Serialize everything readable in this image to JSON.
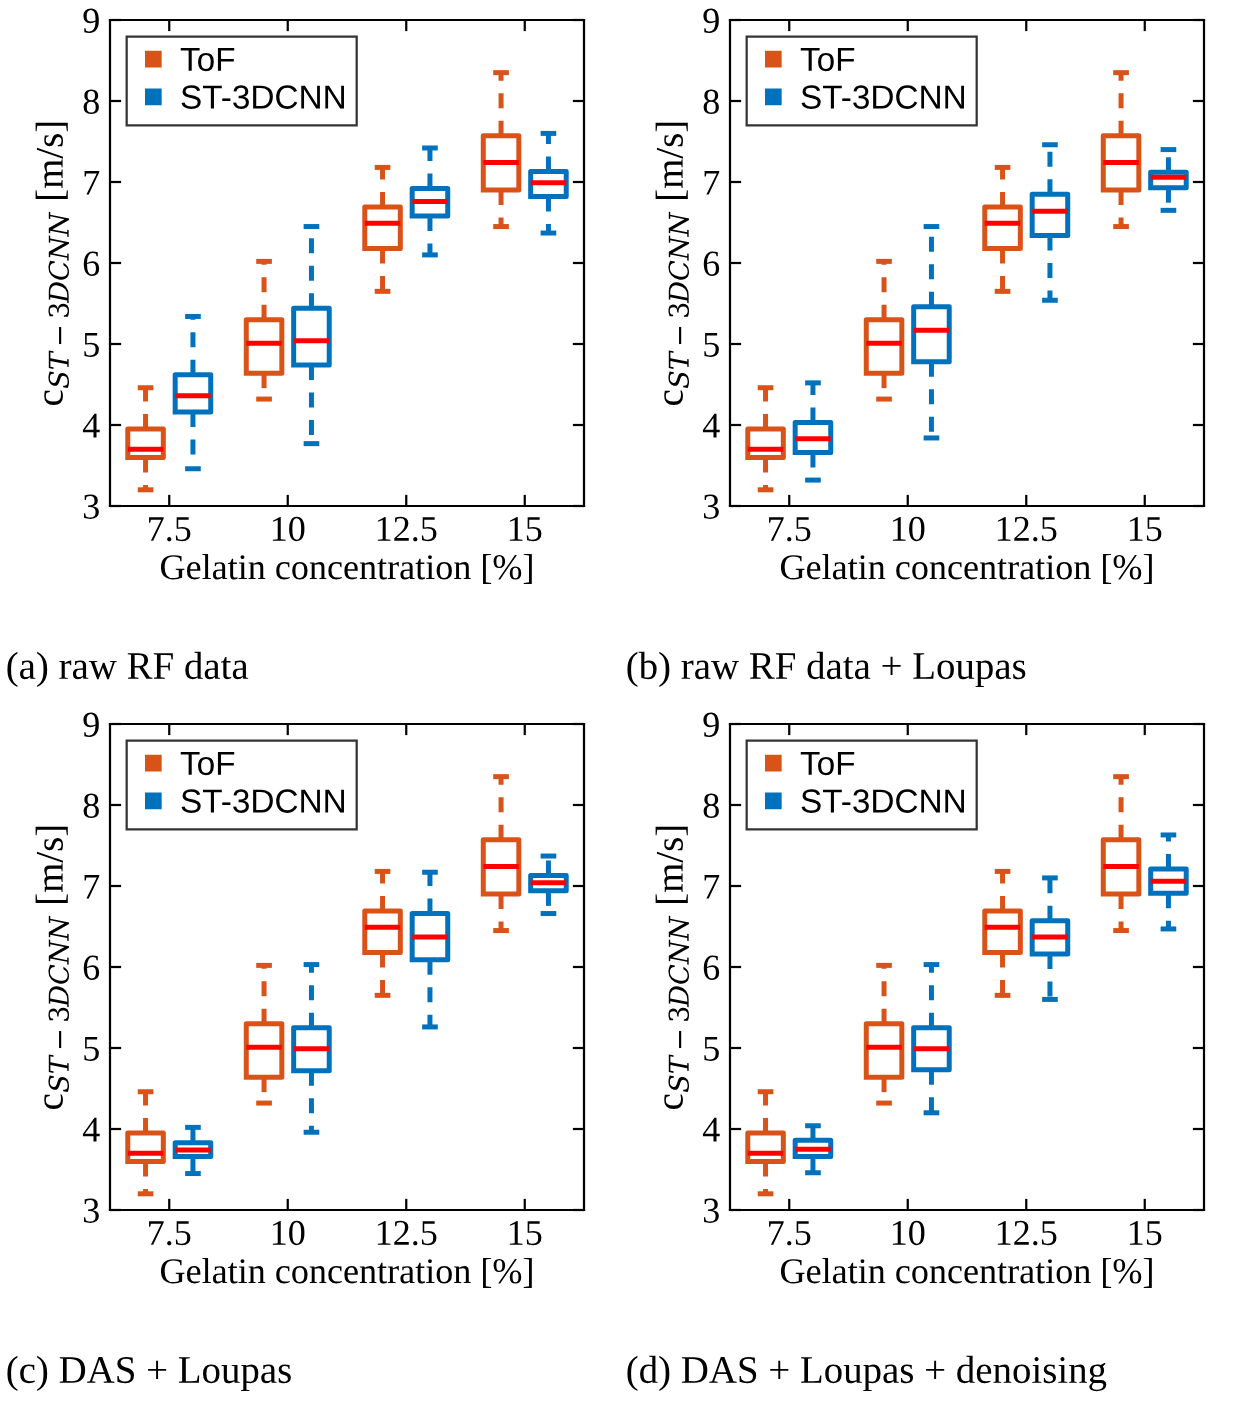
{
  "chart_data": [
    {
      "type": "box",
      "title": "(a) raw RF data",
      "xlabel": "Gelatin concentration [%]",
      "ylabel": "c$_{ST−3DCNN}$ [m/s]",
      "categories": [
        "7.5",
        "10",
        "12.5",
        "15"
      ],
      "ylim": [
        3,
        9
      ],
      "yticks": [
        3,
        4,
        5,
        6,
        7,
        8,
        9
      ],
      "legend": "top left",
      "grid": false,
      "series": [
        {
          "name": "ToF",
          "color": "#d95319",
          "boxes": [
            {
              "low": 3.2,
              "q1": 3.6,
              "median": 3.7,
              "q3": 3.95,
              "high": 4.46
            },
            {
              "low": 4.32,
              "q1": 4.64,
              "median": 5.01,
              "q3": 5.3,
              "high": 6.02
            },
            {
              "low": 5.65,
              "q1": 6.18,
              "median": 6.49,
              "q3": 6.69,
              "high": 7.18
            },
            {
              "low": 6.45,
              "q1": 6.9,
              "median": 7.24,
              "q3": 7.57,
              "high": 8.35
            }
          ]
        },
        {
          "name": "ST-3DCNN",
          "color": "#0072bd",
          "boxes": [
            {
              "low": 3.46,
              "q1": 4.16,
              "median": 4.36,
              "q3": 4.62,
              "high": 5.34
            },
            {
              "low": 3.77,
              "q1": 4.74,
              "median": 5.04,
              "q3": 5.44,
              "high": 6.45
            },
            {
              "low": 6.1,
              "q1": 6.58,
              "median": 6.76,
              "q3": 6.92,
              "high": 7.42
            },
            {
              "low": 6.37,
              "q1": 6.82,
              "median": 6.99,
              "q3": 7.13,
              "high": 7.6
            }
          ]
        }
      ]
    },
    {
      "type": "box",
      "title": "(b) raw RF data + Loupas",
      "xlabel": "Gelatin concentration [%]",
      "ylabel": "c$_{ST−3DCNN}$ [m/s]",
      "categories": [
        "7.5",
        "10",
        "12.5",
        "15"
      ],
      "ylim": [
        3,
        9
      ],
      "yticks": [
        3,
        4,
        5,
        6,
        7,
        8,
        9
      ],
      "legend": "top left",
      "grid": false,
      "series": [
        {
          "name": "ToF",
          "color": "#d95319",
          "boxes": [
            {
              "low": 3.2,
              "q1": 3.6,
              "median": 3.7,
              "q3": 3.95,
              "high": 4.46
            },
            {
              "low": 4.32,
              "q1": 4.64,
              "median": 5.01,
              "q3": 5.3,
              "high": 6.02
            },
            {
              "low": 5.65,
              "q1": 6.18,
              "median": 6.49,
              "q3": 6.69,
              "high": 7.18
            },
            {
              "low": 6.45,
              "q1": 6.9,
              "median": 7.24,
              "q3": 7.57,
              "high": 8.35
            }
          ]
        },
        {
          "name": "ST-3DCNN",
          "color": "#0072bd",
          "boxes": [
            {
              "low": 3.32,
              "q1": 3.66,
              "median": 3.83,
              "q3": 4.03,
              "high": 4.52
            },
            {
              "low": 3.84,
              "q1": 4.78,
              "median": 5.17,
              "q3": 5.46,
              "high": 6.45
            },
            {
              "low": 5.54,
              "q1": 6.34,
              "median": 6.64,
              "q3": 6.85,
              "high": 7.46
            },
            {
              "low": 6.65,
              "q1": 6.93,
              "median": 7.06,
              "q3": 7.12,
              "high": 7.4
            }
          ]
        }
      ]
    },
    {
      "type": "box",
      "title": "(c) DAS + Loupas",
      "xlabel": "Gelatin concentration [%]",
      "ylabel": "c$_{ST−3DCNN}$ [m/s]",
      "categories": [
        "7.5",
        "10",
        "12.5",
        "15"
      ],
      "ylim": [
        3,
        9
      ],
      "yticks": [
        3,
        4,
        5,
        6,
        7,
        8,
        9
      ],
      "legend": "top left",
      "grid": false,
      "series": [
        {
          "name": "ToF",
          "color": "#d95319",
          "boxes": [
            {
              "low": 3.2,
              "q1": 3.6,
              "median": 3.7,
              "q3": 3.95,
              "high": 4.46
            },
            {
              "low": 4.32,
              "q1": 4.64,
              "median": 5.01,
              "q3": 5.3,
              "high": 6.02
            },
            {
              "low": 5.65,
              "q1": 6.18,
              "median": 6.49,
              "q3": 6.69,
              "high": 7.18
            },
            {
              "low": 6.45,
              "q1": 6.9,
              "median": 7.24,
              "q3": 7.57,
              "high": 8.35
            }
          ]
        },
        {
          "name": "ST-3DCNN",
          "color": "#0072bd",
          "boxes": [
            {
              "low": 3.45,
              "q1": 3.66,
              "median": 3.74,
              "q3": 3.83,
              "high": 4.02
            },
            {
              "low": 3.96,
              "q1": 4.72,
              "median": 4.99,
              "q3": 5.25,
              "high": 6.03
            },
            {
              "low": 5.26,
              "q1": 6.09,
              "median": 6.37,
              "q3": 6.66,
              "high": 7.17
            },
            {
              "low": 6.66,
              "q1": 6.94,
              "median": 7.04,
              "q3": 7.13,
              "high": 7.37
            }
          ]
        }
      ]
    },
    {
      "type": "box",
      "title": "(d) DAS + Loupas + denoising",
      "xlabel": "Gelatin concentration [%]",
      "ylabel": "c$_{ST−3DCNN}$ [m/s]",
      "categories": [
        "7.5",
        "10",
        "12.5",
        "15"
      ],
      "ylim": [
        3,
        9
      ],
      "yticks": [
        3,
        4,
        5,
        6,
        7,
        8,
        9
      ],
      "legend": "top left",
      "grid": false,
      "series": [
        {
          "name": "ToF",
          "color": "#d95319",
          "boxes": [
            {
              "low": 3.2,
              "q1": 3.6,
              "median": 3.7,
              "q3": 3.95,
              "high": 4.46
            },
            {
              "low": 4.32,
              "q1": 4.64,
              "median": 5.01,
              "q3": 5.3,
              "high": 6.02
            },
            {
              "low": 5.65,
              "q1": 6.18,
              "median": 6.49,
              "q3": 6.69,
              "high": 7.18
            },
            {
              "low": 6.45,
              "q1": 6.9,
              "median": 7.24,
              "q3": 7.57,
              "high": 8.35
            }
          ]
        },
        {
          "name": "ST-3DCNN",
          "color": "#0072bd",
          "boxes": [
            {
              "low": 3.46,
              "q1": 3.66,
              "median": 3.75,
              "q3": 3.86,
              "high": 4.04
            },
            {
              "low": 4.2,
              "q1": 4.73,
              "median": 4.99,
              "q3": 5.25,
              "high": 6.03
            },
            {
              "low": 5.6,
              "q1": 6.16,
              "median": 6.37,
              "q3": 6.57,
              "high": 7.1
            },
            {
              "low": 6.47,
              "q1": 6.91,
              "median": 7.06,
              "q3": 7.21,
              "high": 7.63
            }
          ]
        }
      ]
    }
  ]
}
